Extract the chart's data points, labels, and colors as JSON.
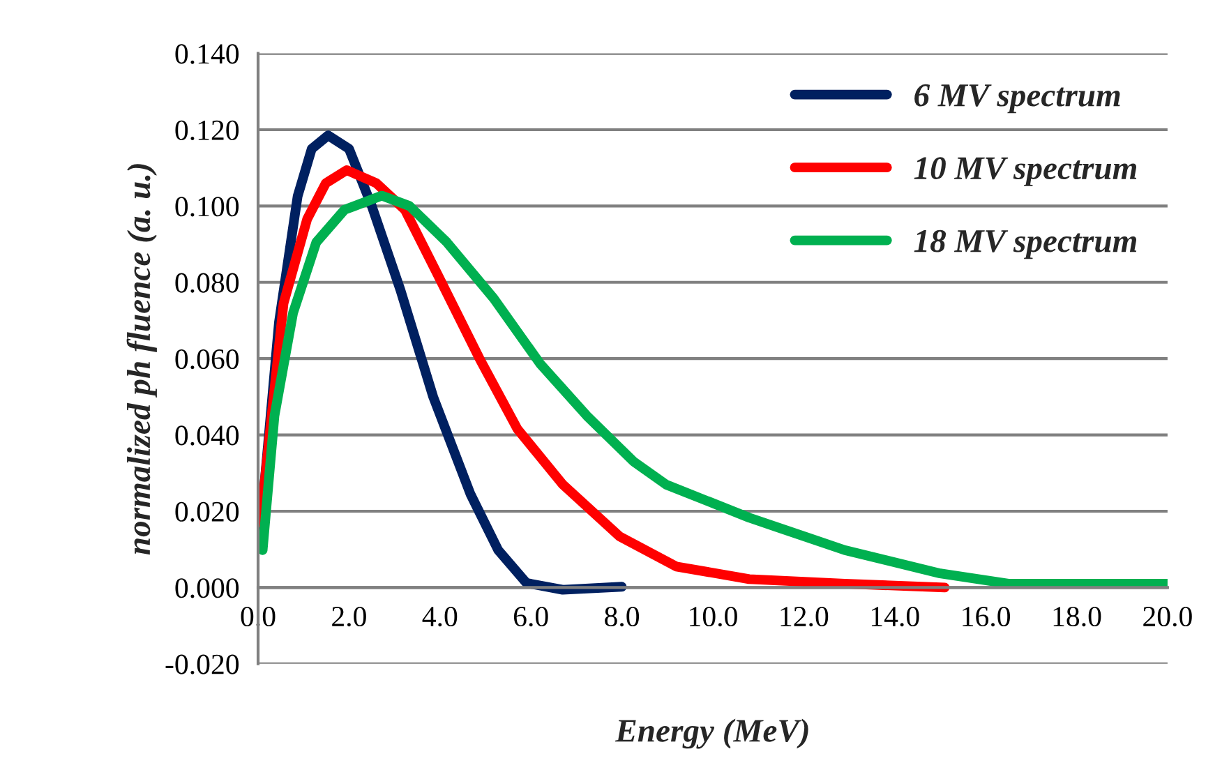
{
  "chart_data": {
    "type": "line",
    "xlabel": "Energy (MeV)",
    "ylabel": "normalized ph fluence (a. u.)",
    "xlim": [
      0,
      20
    ],
    "xticks": [
      {
        "value": 0,
        "label": "0.0"
      },
      {
        "value": 2,
        "label": "2.0"
      },
      {
        "value": 4,
        "label": "4.0"
      },
      {
        "value": 6,
        "label": "6.0"
      },
      {
        "value": 8,
        "label": "8.0"
      },
      {
        "value": 10,
        "label": "10.0"
      },
      {
        "value": 12,
        "label": "12.0"
      },
      {
        "value": 14,
        "label": "14.0"
      },
      {
        "value": 16,
        "label": "16.0"
      },
      {
        "value": 18,
        "label": "18.0"
      },
      {
        "value": 20,
        "label": "20.0"
      }
    ],
    "ylim": [
      -0.02,
      0.14
    ],
    "yticks": [
      {
        "value": -0.02,
        "label": "-0.020"
      },
      {
        "value": 0,
        "label": "0.000"
      },
      {
        "value": 0.02,
        "label": "0.020"
      },
      {
        "value": 0.04,
        "label": "0.040"
      },
      {
        "value": 0.06,
        "label": "0.060"
      },
      {
        "value": 0.08,
        "label": "0.080"
      },
      {
        "value": 0.1,
        "label": "0.100"
      },
      {
        "value": 0.12,
        "label": "0.120"
      },
      {
        "value": 0.14,
        "label": "0.140"
      }
    ],
    "grid": "y",
    "legend": "top right",
    "line_style": "solid",
    "marker": "none",
    "series": [
      {
        "name": "6 MV spectrum",
        "color": "#002060",
        "x": [
          0.05,
          0.46,
          0.87,
          1.18,
          1.54,
          2.0,
          2.5,
          3.13,
          3.85,
          4.67,
          5.28,
          5.9,
          6.7,
          8.0
        ],
        "values": [
          0.015,
          0.0696,
          0.1026,
          0.115,
          0.1185,
          0.115,
          0.1,
          0.078,
          0.05,
          0.0245,
          0.0098,
          0.0012,
          -0.0006,
          0.0002
        ]
      },
      {
        "name": "10 MV spectrum",
        "color": "#ff0000",
        "x": [
          0.05,
          0.56,
          1.08,
          1.49,
          1.95,
          2.6,
          3.23,
          3.95,
          4.87,
          5.7,
          6.7,
          7.95,
          9.2,
          10.8,
          12.9,
          15.1
        ],
        "values": [
          0.017,
          0.0745,
          0.0966,
          0.106,
          0.1094,
          0.106,
          0.099,
          0.082,
          0.06,
          0.0416,
          0.027,
          0.0134,
          0.0055,
          0.0022,
          0.001,
          0.0
        ]
      },
      {
        "name": "18 MV spectrum",
        "color": "#00b050",
        "x": [
          0.1,
          0.36,
          0.77,
          1.28,
          1.9,
          2.72,
          3.33,
          4.15,
          5.18,
          6.2,
          7.23,
          8.26,
          8.97,
          10.8,
          12.9,
          15.0,
          16.5,
          20.0
        ],
        "values": [
          0.0098,
          0.045,
          0.072,
          0.0905,
          0.099,
          0.1027,
          0.1,
          0.0905,
          0.0758,
          0.0587,
          0.045,
          0.033,
          0.027,
          0.0183,
          0.0098,
          0.0037,
          0.001,
          0.001
        ]
      }
    ]
  }
}
